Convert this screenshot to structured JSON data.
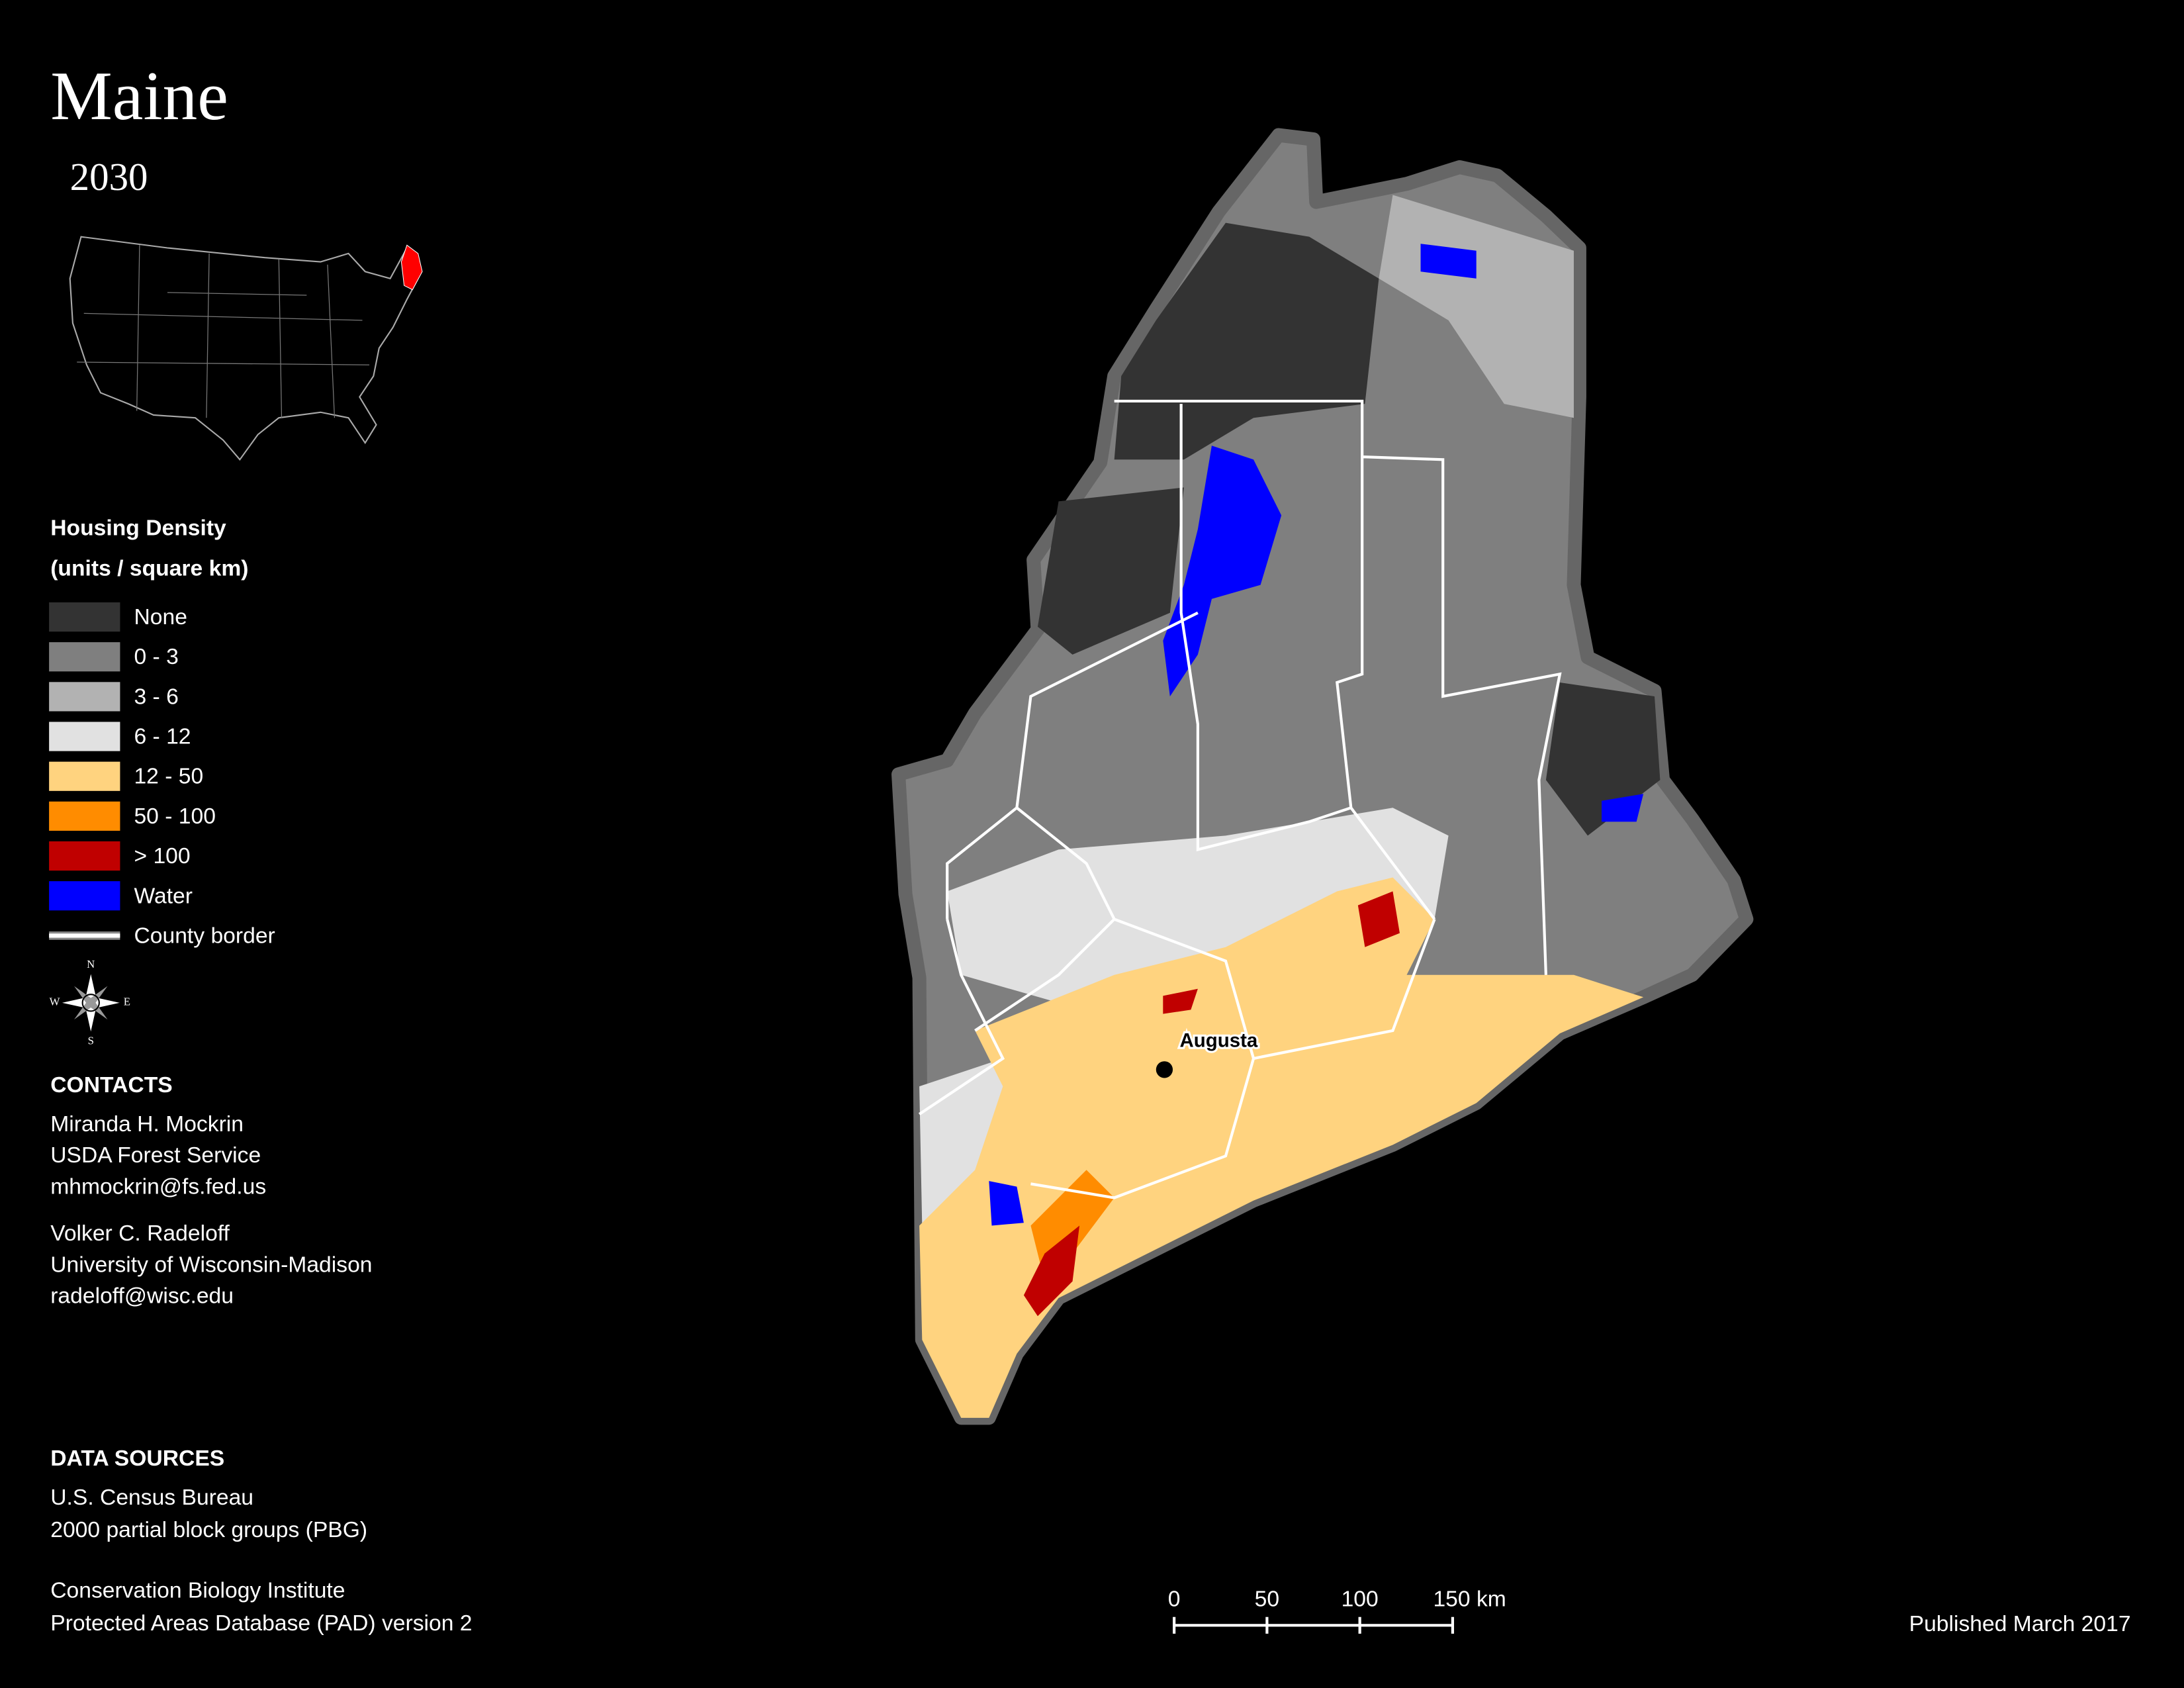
{
  "header": {
    "title": "Maine",
    "subtitle": "2030"
  },
  "legend": {
    "title": "Housing Density",
    "subtitle": "(units / square km)",
    "items": [
      {
        "label": "None",
        "color": "#333333"
      },
      {
        "label": "0 - 3",
        "color": "#7f7f7f"
      },
      {
        "label": "3 - 6",
        "color": "#b2b2b2"
      },
      {
        "label": "6 - 12",
        "color": "#e1e1e1"
      },
      {
        "label": "12 - 50",
        "color": "#ffd37f"
      },
      {
        "label": "50 - 100",
        "color": "#ff8c00"
      },
      {
        "label": "> 100",
        "color": "#c00000"
      },
      {
        "label": "Water",
        "color": "#0000ff"
      },
      {
        "label": "County border",
        "color": "#ffffff"
      }
    ]
  },
  "compass": {
    "n": "N",
    "s": "S",
    "e": "E",
    "w": "W"
  },
  "contacts": {
    "title": "CONTACTS",
    "people": [
      [
        "Miranda H. Mockrin",
        "USDA Forest Service",
        "mhmockrin@fs.fed.us"
      ],
      [
        "Volker C. Radeloff",
        "University of Wisconsin-Madison",
        "radeloff@wisc.edu"
      ]
    ]
  },
  "data_sources": {
    "title": "DATA SOURCES",
    "sources": [
      [
        "U.S. Census Bureau",
        "2000 partial block groups (PBG)"
      ],
      [
        "Conservation Biology Institute",
        "Protected Areas Database (PAD) version 2"
      ]
    ]
  },
  "map": {
    "city": "Augusta"
  },
  "scale_bar": {
    "ticks": [
      0,
      50,
      100,
      {
        "value": 150,
        "label": "150 km"
      }
    ]
  },
  "footer": {
    "published": "Published March 2017"
  }
}
